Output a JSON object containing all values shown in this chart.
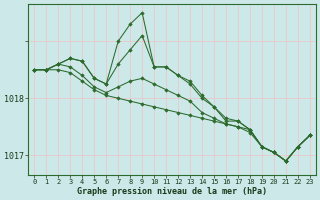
{
  "xlabel": "Graphe pression niveau de la mer (hPa)",
  "bg_color": "#cce8e8",
  "plot_bg_color": "#cce8e8",
  "grid_color": "#e8c8c8",
  "line_color": "#2d6a2d",
  "marker_color": "#2d6a2d",
  "hours": [
    0,
    1,
    2,
    3,
    4,
    5,
    6,
    7,
    8,
    9,
    10,
    11,
    12,
    13,
    14,
    15,
    16,
    17,
    18,
    19,
    20,
    21,
    22,
    23
  ],
  "series": [
    [
      1018.5,
      1018.5,
      1018.6,
      1018.7,
      1018.65,
      1018.35,
      1018.25,
      1019.0,
      1019.3,
      1019.5,
      1018.55,
      1018.55,
      1018.4,
      1018.3,
      1018.05,
      1017.85,
      1017.65,
      1017.6,
      1017.45,
      1017.15,
      1017.05,
      1016.9,
      1017.15,
      1017.35
    ],
    [
      1018.5,
      1018.5,
      1018.6,
      1018.7,
      1018.65,
      1018.35,
      1018.25,
      1018.6,
      1018.85,
      1019.1,
      1018.55,
      1018.55,
      1018.4,
      1018.25,
      1018.0,
      1017.85,
      1017.6,
      1017.6,
      1017.45,
      1017.15,
      1017.05,
      1016.9,
      1017.15,
      1017.35
    ],
    [
      1018.5,
      1018.5,
      1018.6,
      1018.55,
      1018.4,
      1018.2,
      1018.1,
      1018.2,
      1018.3,
      1018.35,
      1018.25,
      1018.15,
      1018.05,
      1017.95,
      1017.75,
      1017.65,
      1017.55,
      1017.5,
      1017.4,
      1017.15,
      1017.05,
      1016.9,
      1017.15,
      1017.35
    ],
    [
      1018.5,
      1018.5,
      1018.5,
      1018.45,
      1018.3,
      1018.15,
      1018.05,
      1018.0,
      1017.95,
      1017.9,
      1017.85,
      1017.8,
      1017.75,
      1017.7,
      1017.65,
      1017.6,
      1017.55,
      1017.5,
      1017.45,
      1017.15,
      1017.05,
      1016.9,
      1017.15,
      1017.35
    ]
  ],
  "ylim": [
    1016.65,
    1019.65
  ],
  "yticks": [
    1017.0,
    1018.0,
    1019.0
  ],
  "ytick_labels": [
    "1017",
    "1018",
    ""
  ],
  "xlim": [
    -0.5,
    23.5
  ],
  "xticks": [
    0,
    1,
    2,
    3,
    4,
    5,
    6,
    7,
    8,
    9,
    10,
    11,
    12,
    13,
    14,
    15,
    16,
    17,
    18,
    19,
    20,
    21,
    22,
    23
  ]
}
